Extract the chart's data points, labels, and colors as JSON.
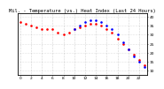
{
  "title": "Mil. - Temperature (vs.) Heat Index (Last 24 Hours)",
  "bg_color": "#ffffff",
  "plot_bg_color": "#ffffff",
  "grid_color": "#888888",
  "temp_color": "#ff0000",
  "heat_color": "#0000ff",
  "temp_x": [
    0,
    1,
    2,
    3,
    4,
    5,
    6,
    7,
    8,
    9,
    10,
    11,
    12,
    13,
    14,
    15,
    16,
    17,
    18,
    19,
    20,
    21,
    22,
    23
  ],
  "temp_y": [
    37,
    36,
    35,
    34,
    33,
    33,
    33,
    31,
    30,
    31,
    33,
    34,
    35,
    36,
    36,
    35,
    33,
    31,
    28,
    25,
    22,
    19,
    16,
    13
  ],
  "heat_x": [
    10,
    11,
    12,
    13,
    14,
    15,
    16,
    17,
    18,
    19,
    20,
    21,
    22,
    23
  ],
  "heat_y": [
    33,
    35,
    37,
    38,
    38,
    37,
    35,
    33,
    30,
    26,
    22,
    18,
    15,
    12
  ],
  "ylim_min": 8,
  "ylim_max": 42,
  "xlim_min": -0.5,
  "xlim_max": 23.5,
  "yticks": [
    10,
    15,
    20,
    25,
    30,
    35,
    40
  ],
  "xticks": [
    0,
    2,
    4,
    6,
    8,
    10,
    12,
    14,
    16,
    18,
    20,
    22
  ],
  "title_fontsize": 4.0,
  "tick_fontsize": 3.2,
  "marker_size": 1.8,
  "grid_linewidth": 0.4,
  "spine_linewidth": 0.6
}
